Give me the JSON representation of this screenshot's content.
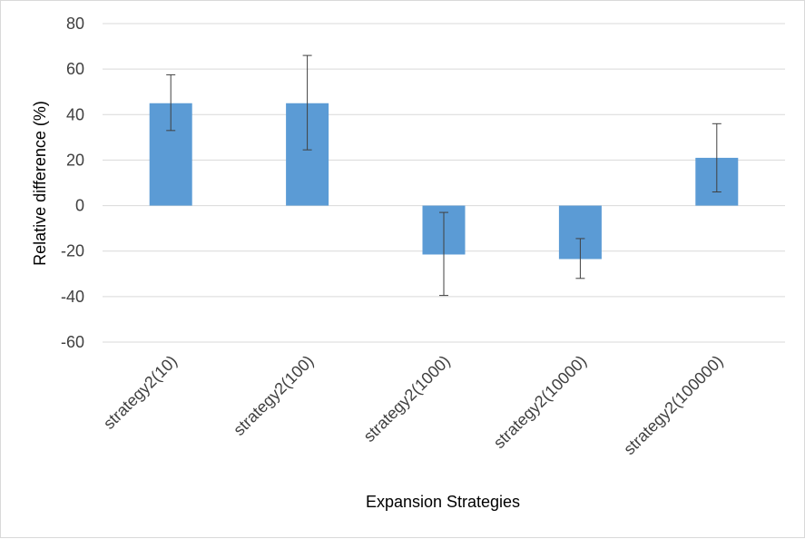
{
  "chart_data": {
    "type": "bar",
    "title": "",
    "xlabel": "Expansion Strategies",
    "ylabel": "Relative difference (%)",
    "ylim": [
      -60,
      80
    ],
    "yticks": [
      80,
      60,
      40,
      20,
      0,
      -20,
      -40,
      -60
    ],
    "categories": [
      "strategy2(10)",
      "strategy2(100)",
      "strategy2(1000)",
      "strategy2(10000)",
      "strategy2(100000)"
    ],
    "values": [
      45,
      45,
      -21.5,
      -23.5,
      21
    ],
    "error_high": [
      57.5,
      66,
      -3,
      -14.5,
      36
    ],
    "error_low": [
      33,
      24.5,
      -39.5,
      -32,
      6
    ],
    "bar_color": "#5b9bd5",
    "grid": true,
    "legend": "none"
  }
}
